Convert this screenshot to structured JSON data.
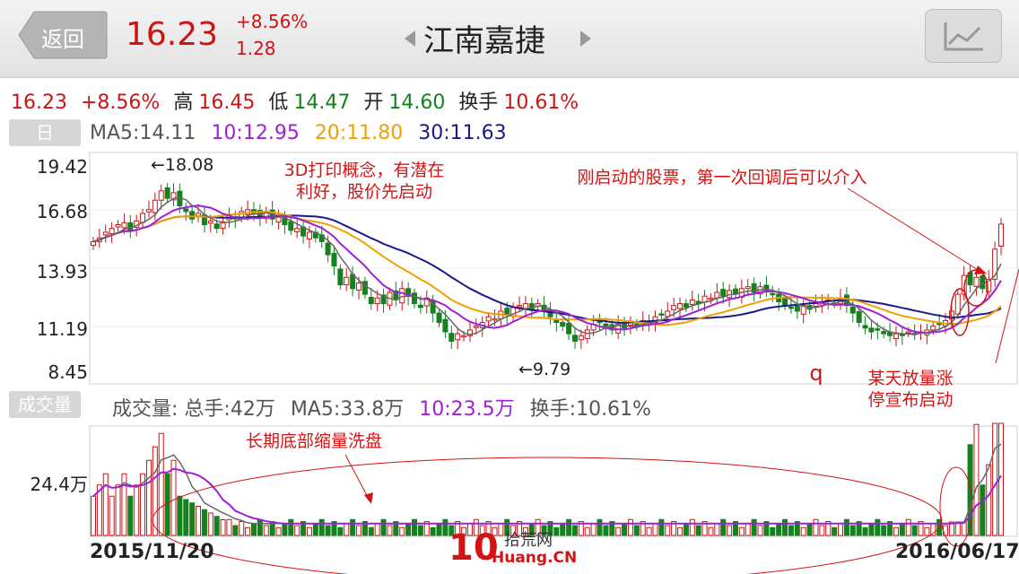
{
  "header": {
    "back_label": "返回",
    "price": "16.23",
    "change_pct": "+8.56%",
    "change_abs": "1.28",
    "stock_name": "江南嘉捷"
  },
  "quote": {
    "price": "16.23",
    "change_pct": "+8.56%",
    "high_label": "高",
    "high": "16.45",
    "low_label": "低",
    "low": "14.47",
    "open_label": "开",
    "open": "14.60",
    "turnover_label": "换手",
    "turnover": "10.61%"
  },
  "kline": {
    "period_tag": "日",
    "ma5": "MA5:14.11",
    "ma10": "10:12.95",
    "ma20": "20:11.80",
    "ma30": "30:11.63",
    "y_ticks": [
      "19.42",
      "16.68",
      "13.93",
      "11.19",
      "8.45"
    ],
    "high_mark": "←18.08",
    "low_mark": "←9.79"
  },
  "volume": {
    "tag": "成交量",
    "total": "成交量: 总手:42万",
    "ma5": "MA5:33.8万",
    "ma10": "10:23.5万",
    "turnover": "换手:10.61%",
    "y_tick": "24.4万"
  },
  "dates": {
    "start": "2015/11/20",
    "end": "2016/06/17"
  },
  "annotations": {
    "concept_line1": "3D打印概念，有潜在",
    "concept_line2": "利好，股价先启动",
    "pullback": "刚启动的股票，第一次回调后可以介入",
    "limit_line1": "某天放量涨",
    "limit_line2": "停宣布启动",
    "q_mark": "q",
    "shakeout": "长期底部缩量洗盘"
  },
  "watermark": {
    "num": "10",
    "cn": "拾荒网",
    "en": "Huang.CN"
  },
  "colors": {
    "up": "#cc1414",
    "down": "#14801e",
    "ma5": "#555555",
    "ma10": "#a020d8",
    "ma20": "#f0a000",
    "ma30": "#1a1a8c"
  },
  "chart_data": {
    "type": "candlestick",
    "y_range": [
      8.45,
      19.42
    ],
    "series_closes": [
      15.3,
      15.5,
      15.8,
      16.0,
      16.2,
      16.3,
      15.9,
      16.4,
      16.8,
      17.0,
      17.5,
      18.0,
      17.6,
      17.9,
      17.2,
      16.9,
      16.5,
      16.8,
      16.2,
      16.4,
      16.0,
      16.3,
      16.7,
      16.5,
      16.9,
      17.0,
      16.8,
      16.6,
      16.9,
      16.5,
      16.6,
      16.2,
      15.9,
      16.0,
      15.6,
      15.8,
      15.5,
      15.3,
      14.6,
      14.0,
      13.0,
      13.4,
      12.8,
      13.1,
      12.5,
      12.0,
      12.3,
      12.0,
      12.6,
      12.2,
      12.8,
      12.4,
      12.0,
      11.8,
      12.3,
      11.5,
      11.0,
      10.5,
      10.0,
      10.4,
      10.3,
      10.6,
      10.8,
      11.0,
      11.3,
      11.2,
      11.6,
      11.4,
      11.8,
      11.9,
      12.0,
      11.7,
      12.0,
      11.6,
      11.3,
      11.0,
      10.8,
      10.4,
      10.0,
      10.3,
      10.6,
      10.9,
      11.0,
      10.8,
      10.6,
      10.9,
      10.7,
      11.0,
      10.8,
      11.1,
      11.0,
      11.3,
      11.4,
      11.6,
      11.9,
      12.0,
      11.8,
      12.2,
      12.0,
      12.4,
      12.3,
      12.6,
      12.4,
      12.7,
      12.5,
      12.8,
      12.9,
      12.6,
      12.9,
      12.7,
      12.5,
      12.1,
      11.9,
      11.8,
      11.6,
      11.9,
      11.7,
      12.0,
      12.1,
      12.2,
      12.0,
      12.3,
      11.9,
      11.5,
      11.0,
      10.7,
      10.5,
      10.6,
      10.4,
      10.3,
      10.4,
      10.3,
      10.5,
      10.4,
      10.5,
      10.6,
      10.8,
      10.9,
      11.1,
      11.6,
      12.5,
      13.5,
      13.0,
      13.4,
      12.8,
      13.3,
      14.9,
      16.23
    ],
    "volume_y_tick": "24.4万"
  }
}
